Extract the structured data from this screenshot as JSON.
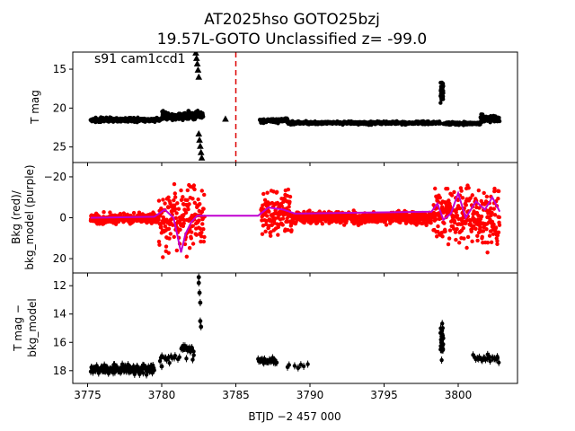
{
  "title_line1": "AT2025hso  GOTO25bzj",
  "title_line2": "19.57L-GOTO Unclassified z= -99.0",
  "chart_data": [
    {
      "type": "scatter",
      "panel": "top",
      "ylabel": "T mag",
      "annotation": "s91 cam1ccd1",
      "ylim_inverted": [
        27,
        12.8
      ],
      "yticks": [
        15,
        20,
        25
      ],
      "vline_x": 3785.0,
      "series": [
        {
          "marker": "circle",
          "color": "#000000",
          "segments": [
            {
              "x0": 3775.2,
              "x1": 3780.0,
              "y": 21.5,
              "spread": 0.4
            },
            {
              "x0": 3780.0,
              "x1": 3782.8,
              "y": 21.0,
              "spread": 0.9
            },
            {
              "x0": 3786.6,
              "x1": 3788.5,
              "y": 21.6,
              "spread": 0.5
            },
            {
              "x0": 3788.5,
              "x1": 3798.8,
              "y": 21.9,
              "spread": 0.3
            },
            {
              "x0": 3798.8,
              "x1": 3799.0,
              "y": 18.0,
              "spread": 2.5
            },
            {
              "x0": 3799.0,
              "x1": 3801.5,
              "y": 22.0,
              "spread": 0.3
            },
            {
              "x0": 3801.5,
              "x1": 3802.8,
              "y": 21.4,
              "spread": 0.9
            }
          ]
        },
        {
          "marker": "triangle",
          "color": "#000000",
          "points": [
            [
              3782.3,
              12.9
            ],
            [
              3782.35,
              13.6
            ],
            [
              3782.4,
              14.3
            ],
            [
              3782.45,
              15.1
            ],
            [
              3782.5,
              16.0
            ],
            [
              3782.5,
              23.3
            ],
            [
              3782.55,
              24.1
            ],
            [
              3782.6,
              24.9
            ],
            [
              3782.65,
              25.7
            ],
            [
              3782.7,
              26.4
            ],
            [
              3784.3,
              21.4
            ]
          ]
        }
      ],
      "xlim": [
        3774,
        3804
      ]
    },
    {
      "type": "scatter",
      "panel": "middle",
      "ylabel": "Bkg (red)/\nbkg_model (purple)",
      "ylim": [
        -27,
        27
      ],
      "yticks": [
        20,
        0,
        -20
      ],
      "series": [
        {
          "name": "Bkg",
          "color": "#ff0000",
          "segments": [
            {
              "x0": 3775.2,
              "x1": 3779.8,
              "y": 0.5,
              "spread": 4.0
            },
            {
              "x0": 3779.8,
              "x1": 3782.9,
              "y": 0,
              "spread": 24
            },
            {
              "x0": 3786.7,
              "x1": 3788.8,
              "y": -2,
              "spread": 20
            },
            {
              "x0": 3788.8,
              "x1": 3798.3,
              "y": 0,
              "spread": 5
            },
            {
              "x0": 3798.3,
              "x1": 3800.0,
              "y": -2,
              "spread": 20
            },
            {
              "x0": 3800.0,
              "x1": 3802.8,
              "y": 0,
              "spread": 24
            }
          ]
        },
        {
          "name": "bkg_model",
          "color": "#c000d0",
          "line": [
            [
              3775.2,
              0
            ],
            [
              3779.5,
              -0.5
            ],
            [
              3780.2,
              -4
            ],
            [
              3780.8,
              0
            ],
            [
              3781.3,
              17
            ],
            [
              3781.6,
              8
            ],
            [
              3782.0,
              2
            ],
            [
              3782.4,
              -1
            ],
            [
              3786.5,
              -1
            ],
            [
              3787.2,
              -5
            ],
            [
              3788.2,
              -4
            ],
            [
              3789.0,
              -2
            ],
            [
              3798.2,
              -3
            ],
            [
              3798.6,
              -7
            ],
            [
              3799.0,
              1
            ],
            [
              3799.5,
              -2
            ],
            [
              3800.0,
              -12
            ],
            [
              3800.5,
              0
            ],
            [
              3801.2,
              -8
            ],
            [
              3801.8,
              -4
            ],
            [
              3802.3,
              -10
            ],
            [
              3802.8,
              -3
            ]
          ]
        }
      ]
    },
    {
      "type": "scatter",
      "panel": "bottom",
      "ylabel": "T mag −\nbkg_model",
      "xlabel": "BTJD −2 457 000",
      "ylim_inverted": [
        18.9,
        11.1
      ],
      "yticks": [
        12,
        14,
        16,
        18
      ],
      "xticks": [
        3775,
        3780,
        3785,
        3790,
        3795,
        3800
      ],
      "series": [
        {
          "color": "#000000",
          "segments": [
            {
              "x0": 3775.2,
              "x1": 3779.5,
              "y": 17.9,
              "spread": 0.5,
              "n": 160
            },
            {
              "x0": 3779.8,
              "x1": 3781.2,
              "y": 17.1,
              "spread": 0.5,
              "n": 14
            },
            {
              "x0": 3781.3,
              "x1": 3782.2,
              "y": 16.5,
              "spread": 0.9,
              "n": 22
            },
            {
              "x0": 3786.5,
              "x1": 3787.8,
              "y": 17.3,
              "spread": 0.3,
              "n": 28
            },
            {
              "x0": 3788.2,
              "x1": 3790.0,
              "y": 17.6,
              "spread": 0.35,
              "n": 6
            },
            {
              "x0": 3798.8,
              "x1": 3799.0,
              "y": 16.0,
              "spread": 1.9,
              "n": 30
            },
            {
              "x0": 3801.0,
              "x1": 3802.8,
              "y": 17.1,
              "spread": 0.5,
              "n": 22
            }
          ],
          "points": [
            [
              3782.5,
              11.4
            ],
            [
              3782.5,
              11.8
            ],
            [
              3782.55,
              12.5
            ],
            [
              3782.6,
              13.2
            ],
            [
              3782.6,
              14.5
            ],
            [
              3782.65,
              14.9
            ],
            [
              3780.0,
              17.7
            ],
            [
              3789.2,
              17.8
            ]
          ]
        }
      ]
    }
  ]
}
